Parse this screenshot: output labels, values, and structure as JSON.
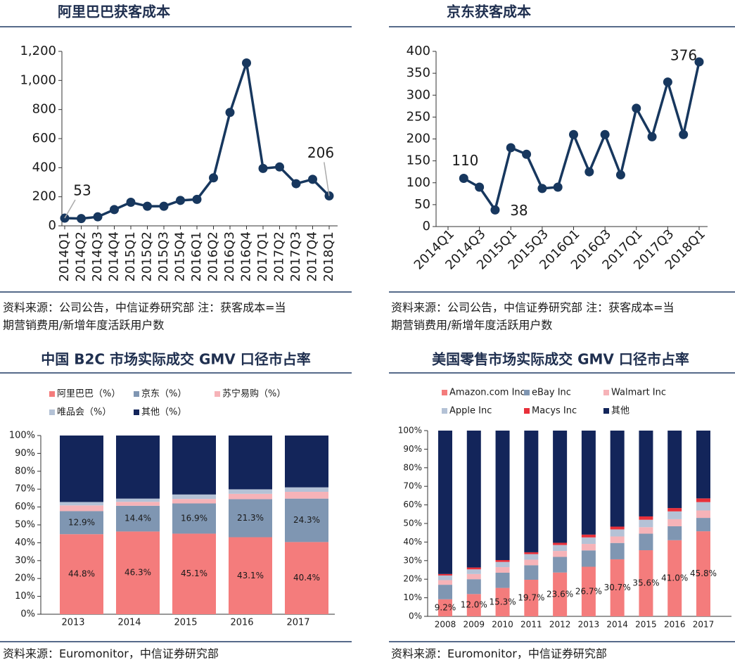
{
  "chart_data": [
    {
      "type": "line",
      "title": "阿里巴巴获客成本",
      "categories": [
        "2014Q1",
        "2014Q2",
        "2014Q3",
        "2014Q4",
        "2015Q1",
        "2015Q2",
        "2015Q3",
        "2015Q4",
        "2016Q1",
        "2016Q2",
        "2016Q3",
        "2016Q4",
        "2017Q1",
        "2017Q2",
        "2017Q3",
        "2017Q4",
        "2018Q1"
      ],
      "values": [
        53,
        50,
        62,
        112,
        162,
        135,
        135,
        175,
        182,
        330,
        780,
        1120,
        395,
        405,
        290,
        320,
        206
      ],
      "value_labels": [
        "53",
        null,
        null,
        null,
        null,
        null,
        null,
        null,
        null,
        null,
        null,
        null,
        null,
        null,
        null,
        null,
        "206"
      ],
      "color": "#17375e",
      "ylim": [
        0,
        1200
      ],
      "yticks": [
        0,
        200,
        400,
        600,
        800,
        {
          "value": 1000,
          "label": "1,000"
        },
        {
          "value": 1200,
          "label": "1,200"
        }
      ],
      "grid": false,
      "source": [
        "资料来源：公司公告，中信证券研究部 注：获客成本=当",
        "期营销费用/新增年度活跃用户数"
      ]
    },
    {
      "type": "line",
      "title": "京东获客成本",
      "categories": [
        "2014Q1",
        null,
        "2014Q3",
        null,
        "2015Q1",
        null,
        "2015Q3",
        null,
        "2016Q1",
        null,
        "2016Q3",
        null,
        "2017Q1",
        null,
        "2017Q3",
        null,
        "2018Q1"
      ],
      "values": [
        null,
        110,
        90,
        38,
        180,
        165,
        87,
        90,
        210,
        125,
        210,
        118,
        270,
        205,
        330,
        210,
        376
      ],
      "value_labels": [
        null,
        "110",
        null,
        "38",
        null,
        null,
        null,
        null,
        null,
        null,
        null,
        null,
        null,
        null,
        null,
        null,
        "376"
      ],
      "color": "#17375e",
      "ylim": [
        0,
        400
      ],
      "yticks": [
        0,
        50,
        100,
        150,
        200,
        250,
        300,
        350,
        400
      ],
      "grid": false,
      "source": [
        "资料来源：公司公告，中信证券研究部 注：获客成本=当",
        "期营销费用/新增年度活跃用户数"
      ]
    },
    {
      "type": "stacked_bar",
      "title": "中国 B2C 市场实际成交 GMV 口径市占率",
      "categories": [
        "2013",
        "2014",
        "2015",
        "2016",
        "2017"
      ],
      "series": [
        {
          "name": "阿里巴巴（%）",
          "color": "#f47c7c",
          "values": [
            44.8,
            46.3,
            45.1,
            43.1,
            40.4
          ],
          "value_labels": [
            "44.8%",
            "46.3%",
            "45.1%",
            "43.1%",
            "40.4%"
          ]
        },
        {
          "name": "京东（%）",
          "color": "#7f96b2",
          "values": [
            12.9,
            14.4,
            16.9,
            21.3,
            24.3
          ],
          "value_labels": [
            "12.9%",
            "14.4%",
            "16.9%",
            "21.3%",
            "24.3%"
          ]
        },
        {
          "name": "苏宁易购（%）",
          "color": "#f6b3b8",
          "values": [
            3.2,
            2.2,
            2.5,
            3.0,
            3.8
          ]
        },
        {
          "name": "唯品会（%）",
          "color": "#b4c2d6",
          "values": [
            1.9,
            1.8,
            2.5,
            2.5,
            2.5
          ]
        },
        {
          "name": "其他（%）",
          "color": "#13255a",
          "values": [
            37.2,
            35.3,
            33.0,
            30.1,
            29.0
          ]
        }
      ],
      "ylim": [
        0,
        100
      ],
      "yticks": [
        {
          "value": 0,
          "label": "0%"
        },
        {
          "value": 10,
          "label": "10%"
        },
        {
          "value": 20,
          "label": "20%"
        },
        {
          "value": 30,
          "label": "30%"
        },
        {
          "value": 40,
          "label": "40%"
        },
        {
          "value": 50,
          "label": "50%"
        },
        {
          "value": 60,
          "label": "60%"
        },
        {
          "value": 70,
          "label": "70%"
        },
        {
          "value": 80,
          "label": "80%"
        },
        {
          "value": 90,
          "label": "90%"
        },
        {
          "value": 100,
          "label": "100%"
        }
      ],
      "grid": false,
      "legend": "top",
      "source": [
        "资料来源：Euromonitor，中信证券研究部"
      ]
    },
    {
      "type": "stacked_bar",
      "title": "美国零售市场实际成交 GMV 口径市占率",
      "categories": [
        "2008",
        "2009",
        "2010",
        "2011",
        "2012",
        "2013",
        "2014",
        "2015",
        "2016",
        "2017"
      ],
      "series": [
        {
          "name": "Amazon.com Inc",
          "color": "#f47c7c",
          "values": [
            9.2,
            12.0,
            15.3,
            19.7,
            23.6,
            26.7,
            30.7,
            35.6,
            41.0,
            45.8
          ],
          "value_labels": [
            "9.2%",
            "12.0%",
            "15.3%",
            "19.7%",
            "23.6%",
            "26.7%",
            "30.7%",
            "35.6%",
            "41.0%",
            "45.8%"
          ]
        },
        {
          "name": "eBay Inc",
          "color": "#7f96b2",
          "values": [
            7.8,
            8.0,
            8.2,
            7.8,
            8.4,
            8.8,
            8.8,
            8.9,
            7.5,
            7.2
          ]
        },
        {
          "name": "Walmart Inc",
          "color": "#f6b3b8",
          "values": [
            2.5,
            2.8,
            3.0,
            3.0,
            3.2,
            3.5,
            3.5,
            3.5,
            3.8,
            4.0
          ]
        },
        {
          "name": "Apple Inc",
          "color": "#b4c2d6",
          "values": [
            2.5,
            2.5,
            2.8,
            3.0,
            3.2,
            3.5,
            3.8,
            4.0,
            4.2,
            4.5
          ]
        },
        {
          "name": "Macys Inc",
          "color": "#e8303a",
          "values": [
            0.8,
            1.0,
            1.0,
            1.0,
            1.2,
            1.5,
            1.5,
            1.8,
            1.8,
            2.0
          ]
        },
        {
          "name": "其他",
          "color": "#13255a",
          "values": [
            77.2,
            73.7,
            69.7,
            65.5,
            60.4,
            56.0,
            51.7,
            46.2,
            41.7,
            36.5
          ]
        }
      ],
      "ylim": [
        0,
        100
      ],
      "yticks": [
        {
          "value": 0,
          "label": "0%"
        },
        {
          "value": 10,
          "label": "10%"
        },
        {
          "value": 20,
          "label": "20%"
        },
        {
          "value": 30,
          "label": "30%"
        },
        {
          "value": 40,
          "label": "40%"
        },
        {
          "value": 50,
          "label": "50%"
        },
        {
          "value": 60,
          "label": "60%"
        },
        {
          "value": 70,
          "label": "70%"
        },
        {
          "value": 80,
          "label": "80%"
        },
        {
          "value": 90,
          "label": "90%"
        },
        {
          "value": 100,
          "label": "100%"
        }
      ],
      "grid": false,
      "legend": "top",
      "source": [
        "资料来源：Euromonitor，中信证券研究部"
      ]
    }
  ]
}
